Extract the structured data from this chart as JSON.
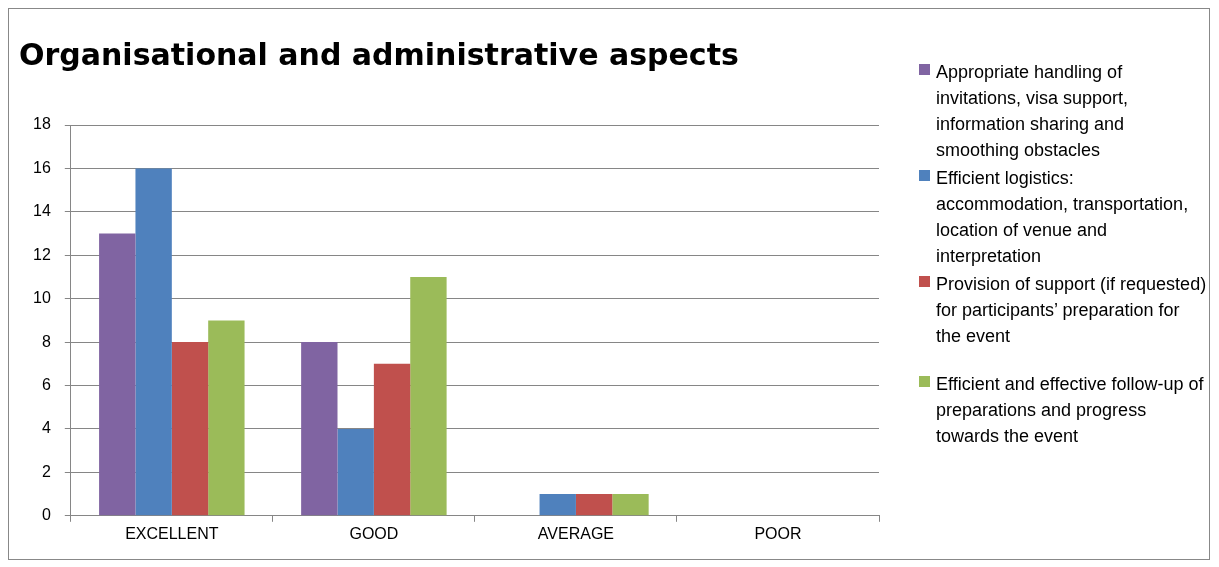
{
  "chart_data": {
    "type": "bar",
    "title": "Organisational and administrative aspects",
    "categories": [
      "EXCELLENT",
      "GOOD",
      "AVERAGE",
      "POOR"
    ],
    "series": [
      {
        "name": "Appropriate handling of invitations, visa support, information sharing and smoothing obstacles",
        "color": "#8064a2",
        "values": [
          13,
          8,
          0,
          0
        ]
      },
      {
        "name": "Efficient logistics: accommodation, transportation, location of venue and interpretation",
        "color": "#4f81bd",
        "values": [
          16,
          4,
          1,
          0
        ]
      },
      {
        "name": "Provision of support (if requested) for participants’ preparation for the event",
        "color": "#c0504d",
        "values": [
          8,
          7,
          1,
          0
        ]
      },
      {
        "name": "Efficient and effective follow-up of preparations and progress towards the event",
        "color": "#9bbb59",
        "values": [
          9,
          11,
          1,
          0
        ]
      }
    ],
    "ylim": [
      0,
      18
    ],
    "yticks": [
      0,
      2,
      4,
      6,
      8,
      10,
      12,
      14,
      16,
      18
    ],
    "grid": "y",
    "legend": "right"
  }
}
